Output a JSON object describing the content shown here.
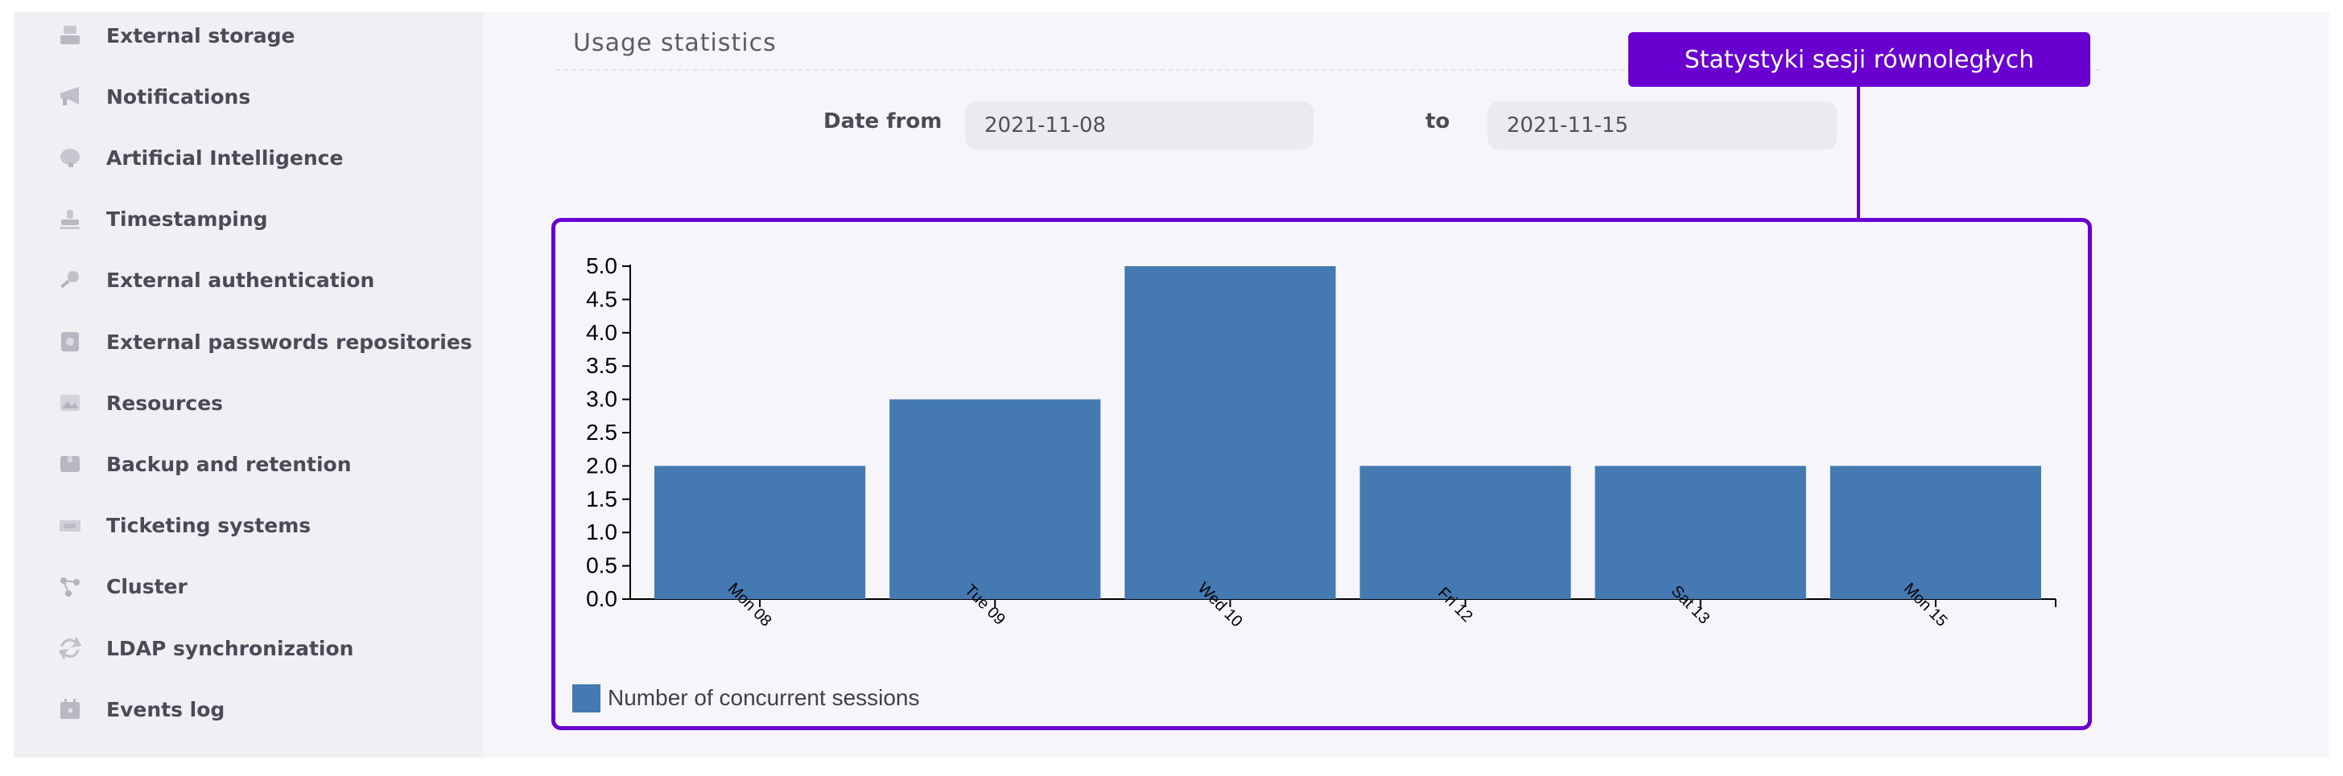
{
  "sidebar": {
    "items": [
      {
        "label": "External storage",
        "icon": "storage-icon"
      },
      {
        "label": "Notifications",
        "icon": "megaphone-icon"
      },
      {
        "label": "Artificial Intelligence",
        "icon": "brain-icon"
      },
      {
        "label": "Timestamping",
        "icon": "stamp-icon"
      },
      {
        "label": "External authentication",
        "icon": "key-icon"
      },
      {
        "label": "External passwords repositories",
        "icon": "safe-icon"
      },
      {
        "label": "Resources",
        "icon": "image-icon"
      },
      {
        "label": "Backup and retention",
        "icon": "archive-icon"
      },
      {
        "label": "Ticketing systems",
        "icon": "ticket-icon"
      },
      {
        "label": "Cluster",
        "icon": "cluster-icon"
      },
      {
        "label": "LDAP synchronization",
        "icon": "sync-icon"
      },
      {
        "label": "Events log",
        "icon": "calendar-icon"
      }
    ]
  },
  "main": {
    "section_title": "Usage statistics",
    "date_from_label": "Date from",
    "date_from_value": "2021-11-08",
    "date_to_label": "to",
    "date_to_value": "2021-11-15"
  },
  "callout": {
    "label": "Statystyki sesji równoległych"
  },
  "colors": {
    "accent": "#6a00d0",
    "bar": "#4579b2"
  },
  "chart_data": {
    "type": "bar",
    "categories": [
      "Mon 08",
      "Tue 09",
      "Wed 10",
      "Fri 12",
      "Sat 13",
      "Mon 15"
    ],
    "series": [
      {
        "name": "Number of concurrent sessions",
        "values": [
          2,
          3,
          5,
          2,
          2,
          2
        ]
      }
    ],
    "ylim": [
      0,
      5
    ],
    "yticks": [
      "0.0",
      "0.5",
      "1.0",
      "1.5",
      "2.0",
      "2.5",
      "3.0",
      "3.5",
      "4.0",
      "4.5",
      "5.0"
    ],
    "legend": "bottom-left"
  }
}
